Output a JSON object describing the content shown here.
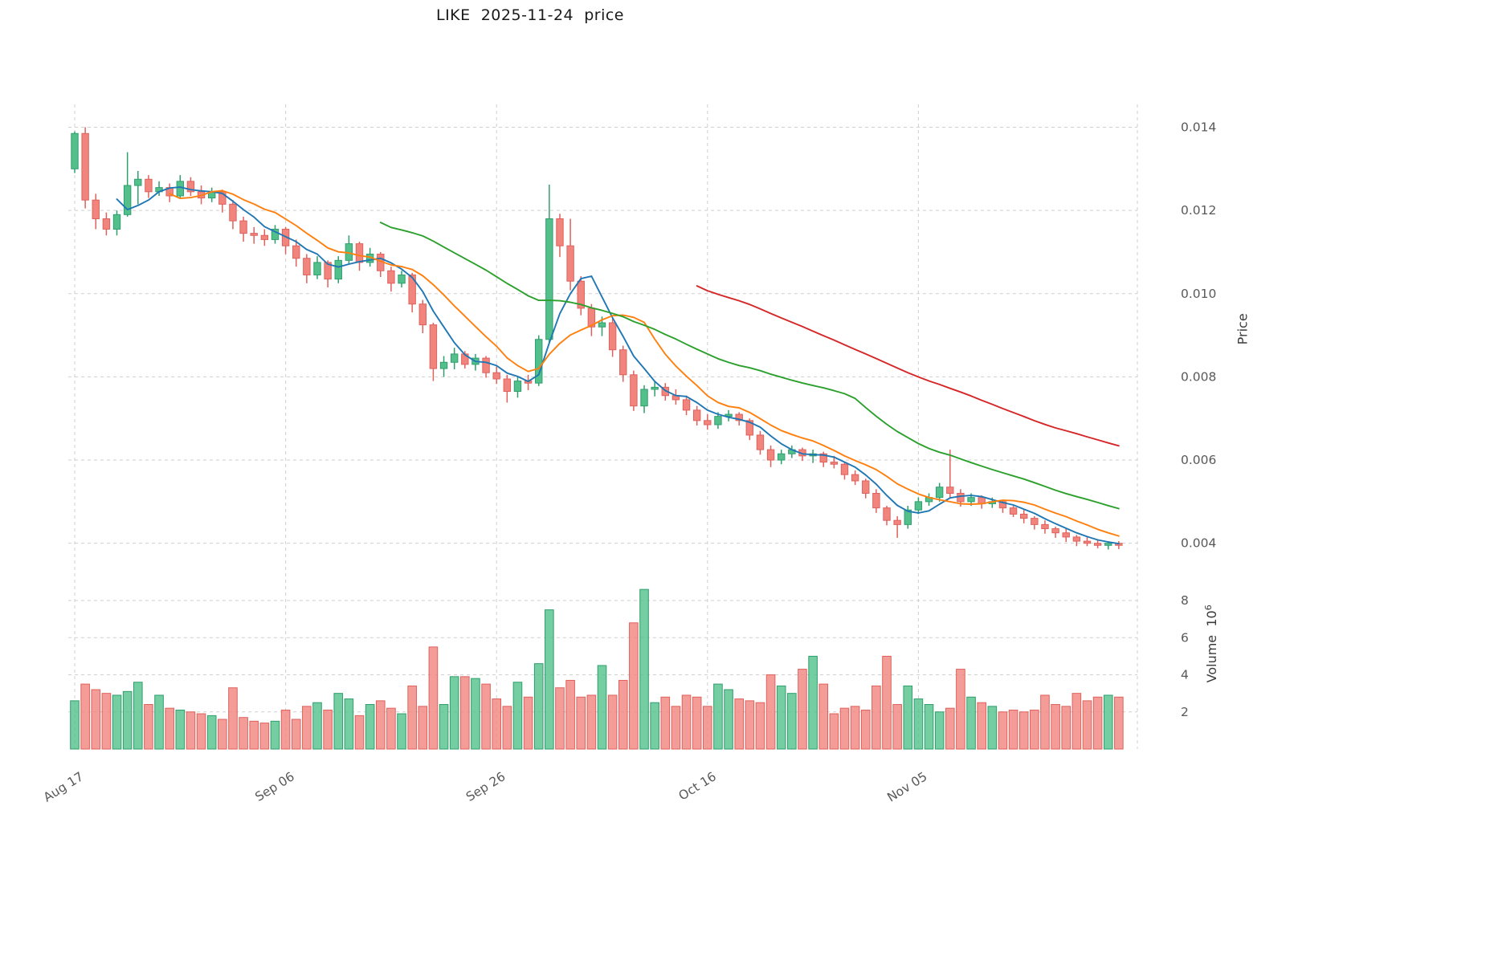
{
  "chart_data": {
    "type": "candlestick",
    "title": "LIKE  2025-11-24  price",
    "grid": true,
    "colors": {
      "up": "#53c08b",
      "up_edge": "#2f9e6d",
      "down": "#f1857e",
      "down_edge": "#df615c",
      "grid": "#cfcfcf",
      "tick_text": "#595959"
    },
    "price_axis": {
      "label": "Price",
      "side": "right",
      "range": [
        0.00355,
        0.01455
      ],
      "ticks": [
        0.004,
        0.006,
        0.008,
        0.01,
        0.012,
        0.014
      ],
      "tick_labels": [
        "0.004",
        "0.006",
        "0.008",
        "0.010",
        "0.012",
        "0.014"
      ]
    },
    "volume_axis": {
      "label": "Volume",
      "scale_base": "10",
      "scale_exp": "6",
      "side": "right",
      "range": [
        0,
        9.3
      ],
      "ticks": [
        2,
        4,
        6,
        8
      ],
      "tick_labels": [
        "2",
        "4",
        "6",
        "8"
      ]
    },
    "x_ticks": {
      "positions": [
        0,
        20,
        40,
        60,
        80
      ],
      "labels": [
        "Aug 17",
        "Sep 06",
        "Sep 26",
        "Oct 16",
        "Nov 05"
      ]
    },
    "moving_averages": [
      {
        "period": 5,
        "color": "#1f77b4"
      },
      {
        "period": 10,
        "color": "#ff7f0e"
      },
      {
        "period": 30,
        "color": "#2ca02c"
      },
      {
        "period": 60,
        "color": "#d62728"
      }
    ],
    "candles_format": [
      "open",
      "high",
      "low",
      "close",
      "volume_millions"
    ],
    "candles": [
      [
        0.013,
        0.0139,
        0.0129,
        0.01385,
        2.6
      ],
      [
        0.01385,
        0.014,
        0.01205,
        0.01225,
        3.5
      ],
      [
        0.01225,
        0.0124,
        0.01155,
        0.0118,
        3.2
      ],
      [
        0.0118,
        0.01195,
        0.0114,
        0.01155,
        3.0
      ],
      [
        0.01155,
        0.012,
        0.0114,
        0.0119,
        2.9
      ],
      [
        0.0119,
        0.0134,
        0.01185,
        0.0126,
        3.1
      ],
      [
        0.0126,
        0.01295,
        0.01215,
        0.01275,
        3.6
      ],
      [
        0.01275,
        0.01285,
        0.0123,
        0.01245,
        2.4
      ],
      [
        0.01245,
        0.0127,
        0.01235,
        0.01255,
        2.9
      ],
      [
        0.01255,
        0.01265,
        0.0122,
        0.01235,
        2.2
      ],
      [
        0.01235,
        0.01285,
        0.0123,
        0.0127,
        2.1
      ],
      [
        0.0127,
        0.0128,
        0.01235,
        0.01245,
        2.0
      ],
      [
        0.01245,
        0.0126,
        0.01215,
        0.0123,
        1.9
      ],
      [
        0.0123,
        0.01255,
        0.0122,
        0.01245,
        1.8
      ],
      [
        0.01245,
        0.0125,
        0.01195,
        0.01215,
        1.6
      ],
      [
        0.01215,
        0.01225,
        0.01155,
        0.01175,
        3.3
      ],
      [
        0.01175,
        0.01185,
        0.01125,
        0.01145,
        1.7
      ],
      [
        0.01145,
        0.0116,
        0.0112,
        0.0114,
        1.5
      ],
      [
        0.0114,
        0.01155,
        0.01115,
        0.0113,
        1.4
      ],
      [
        0.0113,
        0.01165,
        0.0112,
        0.01155,
        1.5
      ],
      [
        0.01155,
        0.0116,
        0.01095,
        0.01115,
        2.1
      ],
      [
        0.01115,
        0.0113,
        0.01065,
        0.01085,
        1.6
      ],
      [
        0.01085,
        0.01095,
        0.01025,
        0.01045,
        2.3
      ],
      [
        0.01045,
        0.0109,
        0.01035,
        0.01075,
        2.5
      ],
      [
        0.01075,
        0.0108,
        0.01015,
        0.01035,
        2.1
      ],
      [
        0.01035,
        0.0109,
        0.01025,
        0.0108,
        3.0
      ],
      [
        0.0108,
        0.0114,
        0.0107,
        0.0112,
        2.7
      ],
      [
        0.0112,
        0.01125,
        0.01055,
        0.01075,
        1.8
      ],
      [
        0.01075,
        0.0111,
        0.01065,
        0.01095,
        2.4
      ],
      [
        0.01095,
        0.011,
        0.0104,
        0.01055,
        2.6
      ],
      [
        0.01055,
        0.01065,
        0.01005,
        0.01025,
        2.2
      ],
      [
        0.01025,
        0.01055,
        0.01015,
        0.01045,
        1.9
      ],
      [
        0.01045,
        0.0105,
        0.00955,
        0.00975,
        3.4
      ],
      [
        0.00975,
        0.00985,
        0.00905,
        0.00925,
        2.3
      ],
      [
        0.00925,
        0.0093,
        0.0079,
        0.0082,
        5.5
      ],
      [
        0.0082,
        0.0085,
        0.008,
        0.00835,
        2.4
      ],
      [
        0.00835,
        0.0087,
        0.00818,
        0.00855,
        3.9
      ],
      [
        0.00855,
        0.00862,
        0.0082,
        0.0083,
        3.9
      ],
      [
        0.0083,
        0.00855,
        0.00815,
        0.00845,
        3.8
      ],
      [
        0.00845,
        0.0085,
        0.00798,
        0.0081,
        3.5
      ],
      [
        0.0081,
        0.00825,
        0.00783,
        0.00795,
        2.7
      ],
      [
        0.00795,
        0.00805,
        0.00738,
        0.00765,
        2.3
      ],
      [
        0.00765,
        0.008,
        0.0075,
        0.0079,
        3.6
      ],
      [
        0.0079,
        0.00805,
        0.00768,
        0.00785,
        2.8
      ],
      [
        0.00785,
        0.009,
        0.00778,
        0.0089,
        4.6
      ],
      [
        0.0089,
        0.01262,
        0.0088,
        0.0118,
        7.5
      ],
      [
        0.0118,
        0.01192,
        0.01088,
        0.01115,
        3.3
      ],
      [
        0.01115,
        0.0118,
        0.01008,
        0.0103,
        3.7
      ],
      [
        0.0103,
        0.01042,
        0.00948,
        0.00965,
        2.8
      ],
      [
        0.00965,
        0.00975,
        0.00898,
        0.0092,
        2.9
      ],
      [
        0.0092,
        0.00945,
        0.00898,
        0.0093,
        4.5
      ],
      [
        0.0093,
        0.0094,
        0.00848,
        0.00865,
        2.9
      ],
      [
        0.00865,
        0.00875,
        0.00788,
        0.00805,
        3.7
      ],
      [
        0.00805,
        0.00815,
        0.00718,
        0.0073,
        6.8
      ],
      [
        0.0073,
        0.0078,
        0.00713,
        0.0077,
        8.6
      ],
      [
        0.0077,
        0.0079,
        0.00753,
        0.00775,
        2.5
      ],
      [
        0.00775,
        0.00785,
        0.00743,
        0.00755,
        2.8
      ],
      [
        0.00755,
        0.0077,
        0.00733,
        0.00745,
        2.3
      ],
      [
        0.00745,
        0.00755,
        0.00708,
        0.0072,
        2.9
      ],
      [
        0.0072,
        0.0073,
        0.00683,
        0.00695,
        2.8
      ],
      [
        0.00695,
        0.0071,
        0.00673,
        0.00685,
        2.3
      ],
      [
        0.00685,
        0.00715,
        0.00675,
        0.00705,
        3.5
      ],
      [
        0.00705,
        0.0072,
        0.00693,
        0.0071,
        3.2
      ],
      [
        0.0071,
        0.00715,
        0.00683,
        0.00695,
        2.7
      ],
      [
        0.00695,
        0.007,
        0.00648,
        0.0066,
        2.6
      ],
      [
        0.0066,
        0.0067,
        0.00613,
        0.00625,
        2.5
      ],
      [
        0.00625,
        0.00635,
        0.00583,
        0.006,
        4.0
      ],
      [
        0.006,
        0.00625,
        0.0059,
        0.00615,
        3.4
      ],
      [
        0.00615,
        0.00635,
        0.00605,
        0.00625,
        3.0
      ],
      [
        0.00625,
        0.0063,
        0.00598,
        0.0061,
        4.3
      ],
      [
        0.0061,
        0.00625,
        0.00593,
        0.00615,
        5.0
      ],
      [
        0.00615,
        0.0062,
        0.00583,
        0.00595,
        3.5
      ],
      [
        0.00595,
        0.0061,
        0.0058,
        0.0059,
        1.9
      ],
      [
        0.0059,
        0.00595,
        0.00553,
        0.00565,
        2.2
      ],
      [
        0.00565,
        0.00575,
        0.0054,
        0.0055,
        2.3
      ],
      [
        0.0055,
        0.00555,
        0.00508,
        0.0052,
        2.1
      ],
      [
        0.0052,
        0.0053,
        0.00473,
        0.00485,
        3.4
      ],
      [
        0.00485,
        0.0049,
        0.00443,
        0.00455,
        5.0
      ],
      [
        0.00455,
        0.00465,
        0.00413,
        0.00445,
        2.4
      ],
      [
        0.00445,
        0.0049,
        0.00435,
        0.0048,
        3.4
      ],
      [
        0.0048,
        0.0051,
        0.0047,
        0.005,
        2.7
      ],
      [
        0.005,
        0.0052,
        0.0049,
        0.0051,
        2.4
      ],
      [
        0.0051,
        0.00545,
        0.005,
        0.00535,
        2.0
      ],
      [
        0.00535,
        0.00625,
        0.0051,
        0.0052,
        2.2
      ],
      [
        0.0052,
        0.0053,
        0.00488,
        0.005,
        4.3
      ],
      [
        0.005,
        0.0052,
        0.0049,
        0.0051,
        2.8
      ],
      [
        0.0051,
        0.00515,
        0.00483,
        0.00495,
        2.5
      ],
      [
        0.00495,
        0.0051,
        0.00485,
        0.005,
        2.3
      ],
      [
        0.005,
        0.00505,
        0.00473,
        0.00485,
        2.0
      ],
      [
        0.00485,
        0.0049,
        0.00463,
        0.0047,
        2.1
      ],
      [
        0.0047,
        0.0048,
        0.00448,
        0.0046,
        2.0
      ],
      [
        0.0046,
        0.00465,
        0.00433,
        0.00445,
        2.1
      ],
      [
        0.00445,
        0.00455,
        0.00423,
        0.00435,
        2.9
      ],
      [
        0.00435,
        0.0044,
        0.00413,
        0.00425,
        2.4
      ],
      [
        0.00425,
        0.00435,
        0.00403,
        0.00415,
        2.3
      ],
      [
        0.00415,
        0.0042,
        0.00393,
        0.00405,
        3.0
      ],
      [
        0.00405,
        0.00415,
        0.00393,
        0.004,
        2.6
      ],
      [
        0.004,
        0.0041,
        0.00388,
        0.00395,
        2.8
      ],
      [
        0.00395,
        0.00405,
        0.00385,
        0.004,
        2.9
      ],
      [
        0.004,
        0.00405,
        0.00386,
        0.00395,
        2.8
      ]
    ]
  }
}
